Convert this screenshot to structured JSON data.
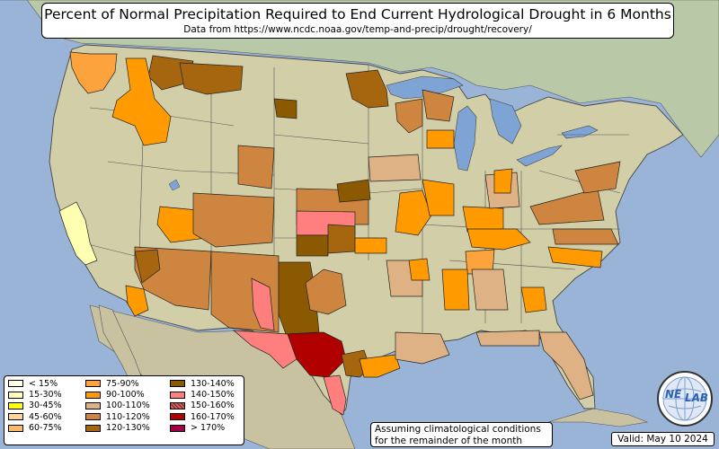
{
  "title": "Percent of Normal Precipitation Required to End Current Hydrological Drought in 6 Months",
  "subtitle": "Data from https://www.ncdc.noaa.gov/temp-and-precip/drought/recovery/",
  "legend": {
    "items": [
      {
        "label": "< 15%",
        "color": "#ffffe6"
      },
      {
        "label": "15-30%",
        "color": "#ffffb2"
      },
      {
        "label": "30-45%",
        "color": "#ffff00"
      },
      {
        "label": "45-60%",
        "color": "#fdd49e"
      },
      {
        "label": "60-75%",
        "color": "#fdbb6a"
      },
      {
        "label": "75-90%",
        "color": "#fca33d"
      },
      {
        "label": "90-100%",
        "color": "#ff9a00"
      },
      {
        "label": "100-110%",
        "color": "#deb284"
      },
      {
        "label": "110-120%",
        "color": "#cd853f"
      },
      {
        "label": "120-130%",
        "color": "#a5660f"
      },
      {
        "label": "130-140%",
        "color": "#8b5a00"
      },
      {
        "label": "140-150%",
        "color": "#ff7f7f"
      },
      {
        "label": "150-160%",
        "color": "#e05c5c"
      },
      {
        "label": "160-170%",
        "color": "#b00000"
      },
      {
        "label": "> 170%",
        "color": "#a0004a"
      }
    ]
  },
  "note": {
    "line1": "Assuming climatological conditions",
    "line2": "for the remainder of the month"
  },
  "valid": "Valid: May 10 2024",
  "logo": {
    "text_ne": "NE",
    "text_lab": "LAB",
    "icon": "globe-icon"
  },
  "colors": {
    "ocean": "#9ab4d8",
    "land": "#d2cfa8",
    "canada": "#b9c9a7",
    "lakes": "#7ea4d6"
  }
}
